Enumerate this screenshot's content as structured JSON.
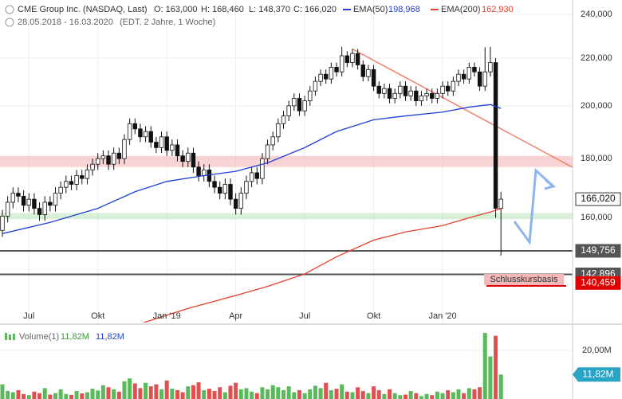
{
  "header": {
    "title": "CME Group Inc. (NASDAQ, Last)",
    "open": "O: 163,000",
    "high": "H: 168,460",
    "low": "L: 148,370",
    "close": "C: 166,020",
    "range": "28.05.2018 - 16.03.2020",
    "info": "(EDT, 2 Jahre, 1 Woche)"
  },
  "chart_data": [
    {
      "type": "candlestick",
      "log": true,
      "grid": true,
      "xlim": [
        -0.45,
        107.5
      ],
      "ylim": [
        129800,
        247000
      ],
      "xticks": [
        {
          "value": 5,
          "label": "Jul"
        },
        {
          "value": 18,
          "label": "Okt"
        },
        {
          "value": 31,
          "label": "Jan '19"
        },
        {
          "value": 44,
          "label": "Apr"
        },
        {
          "value": 57,
          "label": "Jul"
        },
        {
          "value": 70,
          "label": "Okt"
        },
        {
          "value": 83,
          "label": "Jan '20"
        }
      ],
      "yticks": [
        {
          "value": 240000,
          "label": "240,000"
        },
        {
          "value": 220000,
          "label": "220,000"
        },
        {
          "value": 200000,
          "label": "200,000"
        },
        {
          "value": 180000,
          "label": "180,000"
        },
        {
          "value": 160000,
          "label": "160,000"
        }
      ],
      "candles": {
        "open": [
          156000,
          160500,
          165000,
          168000,
          167000,
          164000,
          166000,
          163000,
          161000,
          165000,
          164000,
          168000,
          170000,
          172000,
          171000,
          174000,
          173000,
          176000,
          178000,
          180000,
          181000,
          178000,
          182000,
          180000,
          187000,
          193000,
          191000,
          188000,
          190000,
          186000,
          184000,
          188000,
          183000,
          185000,
          181000,
          179000,
          182000,
          177000,
          174000,
          176000,
          172000,
          170000,
          168000,
          171000,
          166000,
          163000,
          168000,
          172000,
          175000,
          173000,
          180000,
          185000,
          188000,
          193000,
          196000,
          200000,
          203000,
          198000,
          202000,
          206000,
          210000,
          213000,
          211000,
          216000,
          214000,
          221000,
          218000,
          222000,
          217000,
          212000,
          215000,
          208000,
          205000,
          207000,
          203000,
          205000,
          208000,
          204000,
          206000,
          202000,
          204000,
          205000,
          203000,
          205000,
          208000,
          206000,
          210000,
          213000,
          211000,
          216000,
          214000,
          208000,
          214000,
          218000,
          163000
        ],
        "high": [
          162500,
          167000,
          170000,
          170000,
          169000,
          168000,
          168000,
          165000,
          167000,
          167000,
          170000,
          172000,
          174000,
          174000,
          176000,
          176000,
          178000,
          180000,
          182000,
          183000,
          183000,
          184000,
          184000,
          189000,
          195000,
          195000,
          193000,
          192000,
          192000,
          188000,
          190000,
          190000,
          187000,
          187000,
          183000,
          184000,
          184000,
          179000,
          178000,
          178000,
          174000,
          172000,
          173000,
          173000,
          168000,
          170000,
          174000,
          177000,
          177000,
          182000,
          187000,
          190000,
          195000,
          198000,
          202000,
          205000,
          205000,
          204000,
          208000,
          212000,
          215000,
          215000,
          218000,
          218000,
          225000,
          223000,
          224000,
          224000,
          219000,
          217000,
          217000,
          210000,
          209000,
          209000,
          207000,
          210000,
          210000,
          208000,
          208000,
          206000,
          207000,
          207000,
          207000,
          210000,
          210000,
          212000,
          215000,
          215000,
          218000,
          218000,
          216000,
          224800,
          225000,
          220000,
          168460
        ],
        "low": [
          154000,
          158500,
          163000,
          165000,
          162000,
          162000,
          161000,
          159000,
          159000,
          162000,
          162000,
          166000,
          168000,
          169000,
          169000,
          171000,
          171000,
          174000,
          176000,
          178000,
          176000,
          176000,
          178000,
          178000,
          185000,
          189000,
          186000,
          186000,
          184000,
          182000,
          182000,
          181000,
          181000,
          179000,
          177000,
          177000,
          175000,
          172000,
          172000,
          170000,
          168000,
          166000,
          166000,
          164000,
          161000,
          161000,
          166000,
          170000,
          171000,
          171000,
          178000,
          183000,
          186000,
          191000,
          194000,
          198000,
          196000,
          196000,
          200000,
          204000,
          208000,
          209000,
          209000,
          212000,
          212000,
          216000,
          216000,
          215000,
          210000,
          210000,
          206000,
          203000,
          203000,
          201000,
          201000,
          203000,
          202000,
          202000,
          200000,
          200000,
          202000,
          201000,
          201000,
          203000,
          204000,
          204000,
          208000,
          209000,
          209000,
          212000,
          206000,
          206000,
          212000,
          160000,
          148370
        ],
        "close": [
          160500,
          165000,
          168000,
          167000,
          164000,
          166000,
          163000,
          161000,
          165000,
          164000,
          168000,
          170000,
          172000,
          171000,
          174000,
          173000,
          176000,
          178000,
          180000,
          181000,
          178000,
          182000,
          180000,
          187000,
          193000,
          191000,
          188000,
          190000,
          186000,
          184000,
          188000,
          183000,
          185000,
          181000,
          179000,
          182000,
          177000,
          174000,
          176000,
          172000,
          170000,
          168000,
          171000,
          166000,
          163000,
          168000,
          172000,
          175000,
          173000,
          180000,
          185000,
          188000,
          193000,
          196000,
          200000,
          203000,
          198000,
          202000,
          206000,
          210000,
          213000,
          211000,
          216000,
          214000,
          221000,
          218000,
          222000,
          217000,
          212000,
          215000,
          208000,
          205000,
          207000,
          203000,
          205000,
          208000,
          204000,
          206000,
          202000,
          204000,
          205000,
          203000,
          205000,
          208000,
          206000,
          210000,
          213000,
          211000,
          216000,
          214000,
          208000,
          214000,
          218000,
          163000,
          166020
        ]
      },
      "series": [
        {
          "name": "EMA(50)",
          "color": "#1f3fd6",
          "value_label": "198,968",
          "x": [
            0,
            9,
            18,
            25,
            31,
            38,
            44,
            50,
            57,
            63,
            70,
            76,
            83,
            88,
            92,
            94
          ],
          "values": [
            155000,
            158500,
            163000,
            168500,
            172000,
            174000,
            175500,
            178500,
            184000,
            190000,
            194500,
            196000,
            197500,
            199500,
            200500,
            198968
          ]
        },
        {
          "name": "EMA(200)",
          "color": "#e8412c",
          "value_label": "162,930",
          "x": [
            26,
            35,
            44,
            50,
            57,
            63,
            70,
            76,
            83,
            88,
            92,
            94
          ],
          "values": [
            129500,
            133500,
            137000,
            139500,
            143000,
            148000,
            153000,
            155500,
            157500,
            160000,
            161800,
            162930
          ]
        }
      ],
      "zones": [
        {
          "low": 177000,
          "high": 181000,
          "color": "#f4b8b8"
        },
        {
          "low": 159500,
          "high": 161500,
          "color": "#bfe8bf"
        }
      ],
      "trendline": {
        "color": "#f08070",
        "x": [
          66,
          107.5
        ],
        "values": [
          224000,
          176900
        ]
      },
      "levels": [
        {
          "value": 166020,
          "label": "166,020",
          "color": "#ffffff",
          "line": false
        },
        {
          "value": 149756,
          "label": "149,756",
          "color": "#555555",
          "line": true
        },
        {
          "value": 142896,
          "label": "142,896",
          "color": "#555555",
          "line": true
        },
        {
          "value": 140459,
          "label": "140,459",
          "color": "#e00000",
          "line": false
        }
      ],
      "annotation": "Schlusskursbasis"
    },
    {
      "type": "volume",
      "name": "Volume(1)",
      "ylim": [
        3500000,
        28700000
      ],
      "yticks": [
        {
          "value": 20000000,
          "label": "20,00M"
        }
      ],
      "current": {
        "value": 11820000,
        "label": "11,82M"
      },
      "up_color": "#5cb85c",
      "down_color": "#e05050",
      "values": [
        8500000,
        6200000,
        5800000,
        6500000,
        5200000,
        4800000,
        6000000,
        5500000,
        7200000,
        5000000,
        5500000,
        6800000,
        5200000,
        4900000,
        6200000,
        5400000,
        5800000,
        7000000,
        6400000,
        8200000,
        7500000,
        6800000,
        6000000,
        9500000,
        10500000,
        8800000,
        7200000,
        9000000,
        7800000,
        8500000,
        6800000,
        9800000,
        7000000,
        6500000,
        5800000,
        7800000,
        8200000,
        9200000,
        6500000,
        7000000,
        6200000,
        7500000,
        5800000,
        8000000,
        9000000,
        6800000,
        7200000,
        6000000,
        5500000,
        7500000,
        6800000,
        8200000,
        7500000,
        6500000,
        7800000,
        5800000,
        6500000,
        5500000,
        6800000,
        8000000,
        7200000,
        9000000,
        6500000,
        7000000,
        8500000,
        6000000,
        5800000,
        7500000,
        6200000,
        5500000,
        7800000,
        6500000,
        5200000,
        6800000,
        5500000,
        4800000,
        5000000,
        6200000,
        5500000,
        4500000,
        5200000,
        4800000,
        6000000,
        5500000,
        6500000,
        5800000,
        6800000,
        5500000,
        7200000,
        6800000,
        7500000,
        26000000,
        18000000,
        25000000,
        11820000
      ]
    }
  ]
}
